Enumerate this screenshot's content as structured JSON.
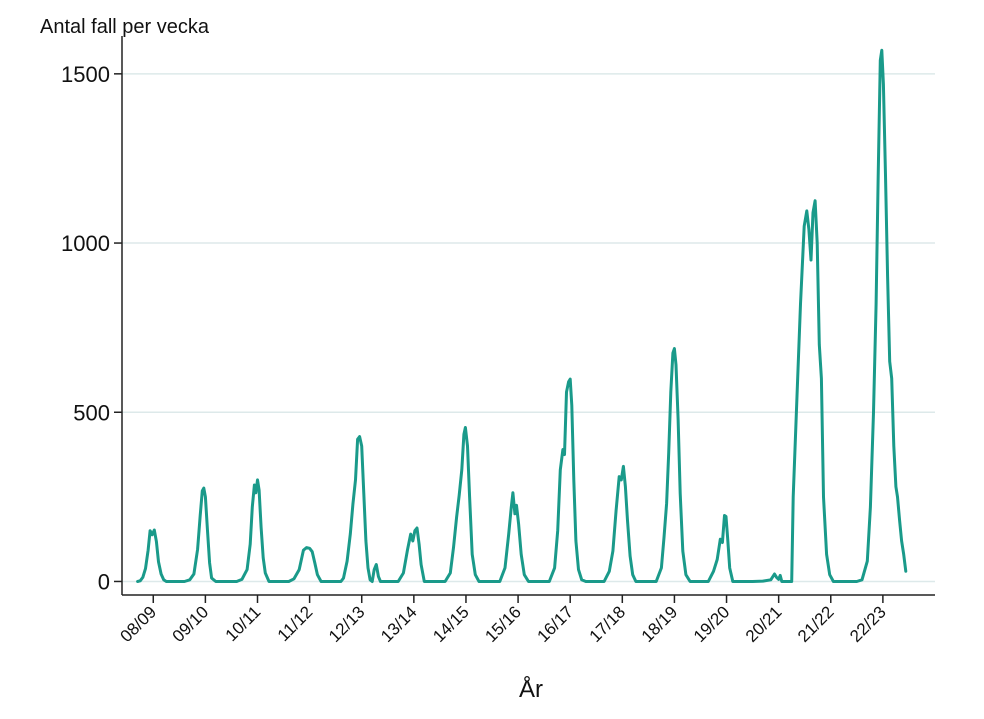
{
  "chart_data": {
    "type": "line",
    "title": "",
    "ylabel": "Antal fall per vecka",
    "xlabel": "År",
    "ylim": [
      -40,
      1600
    ],
    "yticks": [
      0,
      500,
      1000,
      1500
    ],
    "grid": true,
    "colors": {
      "line": "#1a9a8a",
      "grid": "#dde9ea",
      "axis": "#222222"
    },
    "season_labels": [
      "08/09",
      "09/10",
      "10/11",
      "11/12",
      "12/13",
      "13/14",
      "14/15",
      "15/16",
      "16/17",
      "17/18",
      "18/19",
      "19/20",
      "20/21",
      "21/22",
      "22/23"
    ],
    "season_positions": [
      0.3,
      1.3,
      2.3,
      3.3,
      4.3,
      5.3,
      6.3,
      7.3,
      8.3,
      9.3,
      10.3,
      11.3,
      12.3,
      13.3,
      14.3
    ],
    "xlim": [
      -0.3,
      15.3
    ],
    "series": [
      {
        "values": [
          [
            0.0,
            0
          ],
          [
            0.05,
            2
          ],
          [
            0.1,
            12
          ],
          [
            0.15,
            38
          ],
          [
            0.2,
            92
          ],
          [
            0.24,
            150
          ],
          [
            0.28,
            138
          ],
          [
            0.32,
            152
          ],
          [
            0.36,
            118
          ],
          [
            0.4,
            58
          ],
          [
            0.45,
            22
          ],
          [
            0.5,
            5
          ],
          [
            0.55,
            0
          ],
          [
            0.9,
            0
          ],
          [
            1.0,
            5
          ],
          [
            1.08,
            22
          ],
          [
            1.15,
            95
          ],
          [
            1.2,
            195
          ],
          [
            1.24,
            268
          ],
          [
            1.27,
            276
          ],
          [
            1.3,
            250
          ],
          [
            1.34,
            150
          ],
          [
            1.38,
            55
          ],
          [
            1.42,
            10
          ],
          [
            1.5,
            0
          ],
          [
            1.9,
            0
          ],
          [
            2.0,
            6
          ],
          [
            2.1,
            35
          ],
          [
            2.16,
            110
          ],
          [
            2.2,
            220
          ],
          [
            2.24,
            285
          ],
          [
            2.27,
            262
          ],
          [
            2.3,
            300
          ],
          [
            2.33,
            270
          ],
          [
            2.37,
            160
          ],
          [
            2.41,
            70
          ],
          [
            2.45,
            25
          ],
          [
            2.52,
            0
          ],
          [
            2.9,
            0
          ],
          [
            3.0,
            8
          ],
          [
            3.1,
            35
          ],
          [
            3.18,
            92
          ],
          [
            3.24,
            100
          ],
          [
            3.3,
            98
          ],
          [
            3.35,
            88
          ],
          [
            3.4,
            55
          ],
          [
            3.45,
            20
          ],
          [
            3.52,
            0
          ],
          [
            3.9,
            0
          ],
          [
            3.95,
            10
          ],
          [
            4.02,
            60
          ],
          [
            4.08,
            140
          ],
          [
            4.13,
            228
          ],
          [
            4.18,
            300
          ],
          [
            4.22,
            420
          ],
          [
            4.26,
            428
          ],
          [
            4.3,
            400
          ],
          [
            4.34,
            260
          ],
          [
            4.38,
            120
          ],
          [
            4.42,
            40
          ],
          [
            4.46,
            5
          ],
          [
            4.5,
            0
          ],
          [
            4.54,
            35
          ],
          [
            4.58,
            50
          ],
          [
            4.62,
            15
          ],
          [
            4.66,
            0
          ],
          [
            5.0,
            0
          ],
          [
            5.1,
            25
          ],
          [
            5.18,
            95
          ],
          [
            5.24,
            140
          ],
          [
            5.28,
            120
          ],
          [
            5.32,
            150
          ],
          [
            5.36,
            158
          ],
          [
            5.4,
            110
          ],
          [
            5.44,
            50
          ],
          [
            5.5,
            0
          ],
          [
            5.9,
            0
          ],
          [
            6.0,
            25
          ],
          [
            6.06,
            100
          ],
          [
            6.12,
            190
          ],
          [
            6.17,
            255
          ],
          [
            6.22,
            330
          ],
          [
            6.26,
            435
          ],
          [
            6.29,
            455
          ],
          [
            6.33,
            400
          ],
          [
            6.37,
            250
          ],
          [
            6.42,
            80
          ],
          [
            6.48,
            20
          ],
          [
            6.55,
            0
          ],
          [
            6.95,
            0
          ],
          [
            7.05,
            40
          ],
          [
            7.12,
            140
          ],
          [
            7.17,
            220
          ],
          [
            7.2,
            262
          ],
          [
            7.24,
            200
          ],
          [
            7.27,
            225
          ],
          [
            7.31,
            170
          ],
          [
            7.36,
            80
          ],
          [
            7.42,
            20
          ],
          [
            7.5,
            0
          ],
          [
            7.9,
            0
          ],
          [
            8.0,
            40
          ],
          [
            8.06,
            150
          ],
          [
            8.11,
            330
          ],
          [
            8.16,
            390
          ],
          [
            8.19,
            375
          ],
          [
            8.23,
            560
          ],
          [
            8.27,
            590
          ],
          [
            8.3,
            598
          ],
          [
            8.33,
            520
          ],
          [
            8.37,
            300
          ],
          [
            8.41,
            120
          ],
          [
            8.46,
            35
          ],
          [
            8.52,
            5
          ],
          [
            8.6,
            0
          ],
          [
            8.95,
            0
          ],
          [
            9.05,
            30
          ],
          [
            9.12,
            90
          ],
          [
            9.18,
            210
          ],
          [
            9.24,
            310
          ],
          [
            9.28,
            300
          ],
          [
            9.32,
            340
          ],
          [
            9.36,
            280
          ],
          [
            9.4,
            180
          ],
          [
            9.45,
            75
          ],
          [
            9.5,
            20
          ],
          [
            9.56,
            0
          ],
          [
            9.95,
            0
          ],
          [
            10.05,
            40
          ],
          [
            10.1,
            130
          ],
          [
            10.15,
            230
          ],
          [
            10.19,
            380
          ],
          [
            10.23,
            560
          ],
          [
            10.27,
            675
          ],
          [
            10.3,
            688
          ],
          [
            10.33,
            640
          ],
          [
            10.37,
            480
          ],
          [
            10.41,
            260
          ],
          [
            10.46,
            90
          ],
          [
            10.52,
            20
          ],
          [
            10.6,
            0
          ],
          [
            10.95,
            0
          ],
          [
            11.05,
            30
          ],
          [
            11.12,
            65
          ],
          [
            11.18,
            125
          ],
          [
            11.22,
            115
          ],
          [
            11.26,
            195
          ],
          [
            11.29,
            192
          ],
          [
            11.32,
            130
          ],
          [
            11.36,
            40
          ],
          [
            11.42,
            0
          ],
          [
            11.8,
            0
          ],
          [
            12.0,
            1
          ],
          [
            12.15,
            5
          ],
          [
            12.22,
            22
          ],
          [
            12.26,
            12
          ],
          [
            12.3,
            6
          ],
          [
            12.33,
            18
          ],
          [
            12.36,
            0
          ],
          [
            12.55,
            0
          ],
          [
            12.58,
            250
          ],
          [
            12.65,
            540
          ],
          [
            12.72,
            820
          ],
          [
            12.79,
            1050
          ],
          [
            12.84,
            1095
          ],
          [
            12.88,
            1040
          ],
          [
            12.92,
            950
          ],
          [
            12.96,
            1090
          ],
          [
            13.0,
            1125
          ],
          [
            13.04,
            1000
          ],
          [
            13.08,
            700
          ],
          [
            13.12,
            600
          ],
          [
            13.16,
            250
          ],
          [
            13.22,
            80
          ],
          [
            13.28,
            20
          ],
          [
            13.35,
            0
          ],
          [
            13.8,
            0
          ],
          [
            13.9,
            5
          ],
          [
            14.0,
            60
          ],
          [
            14.06,
            220
          ],
          [
            14.12,
            500
          ],
          [
            14.17,
            820
          ],
          [
            14.21,
            1200
          ],
          [
            14.25,
            1540
          ],
          [
            14.28,
            1570
          ],
          [
            14.31,
            1470
          ],
          [
            14.35,
            1200
          ],
          [
            14.39,
            900
          ],
          [
            14.43,
            650
          ],
          [
            14.47,
            600
          ],
          [
            14.51,
            400
          ],
          [
            14.55,
            280
          ],
          [
            14.58,
            250
          ],
          [
            14.62,
            180
          ],
          [
            14.66,
            120
          ],
          [
            14.7,
            80
          ],
          [
            14.74,
            30
          ]
        ]
      }
    ]
  }
}
